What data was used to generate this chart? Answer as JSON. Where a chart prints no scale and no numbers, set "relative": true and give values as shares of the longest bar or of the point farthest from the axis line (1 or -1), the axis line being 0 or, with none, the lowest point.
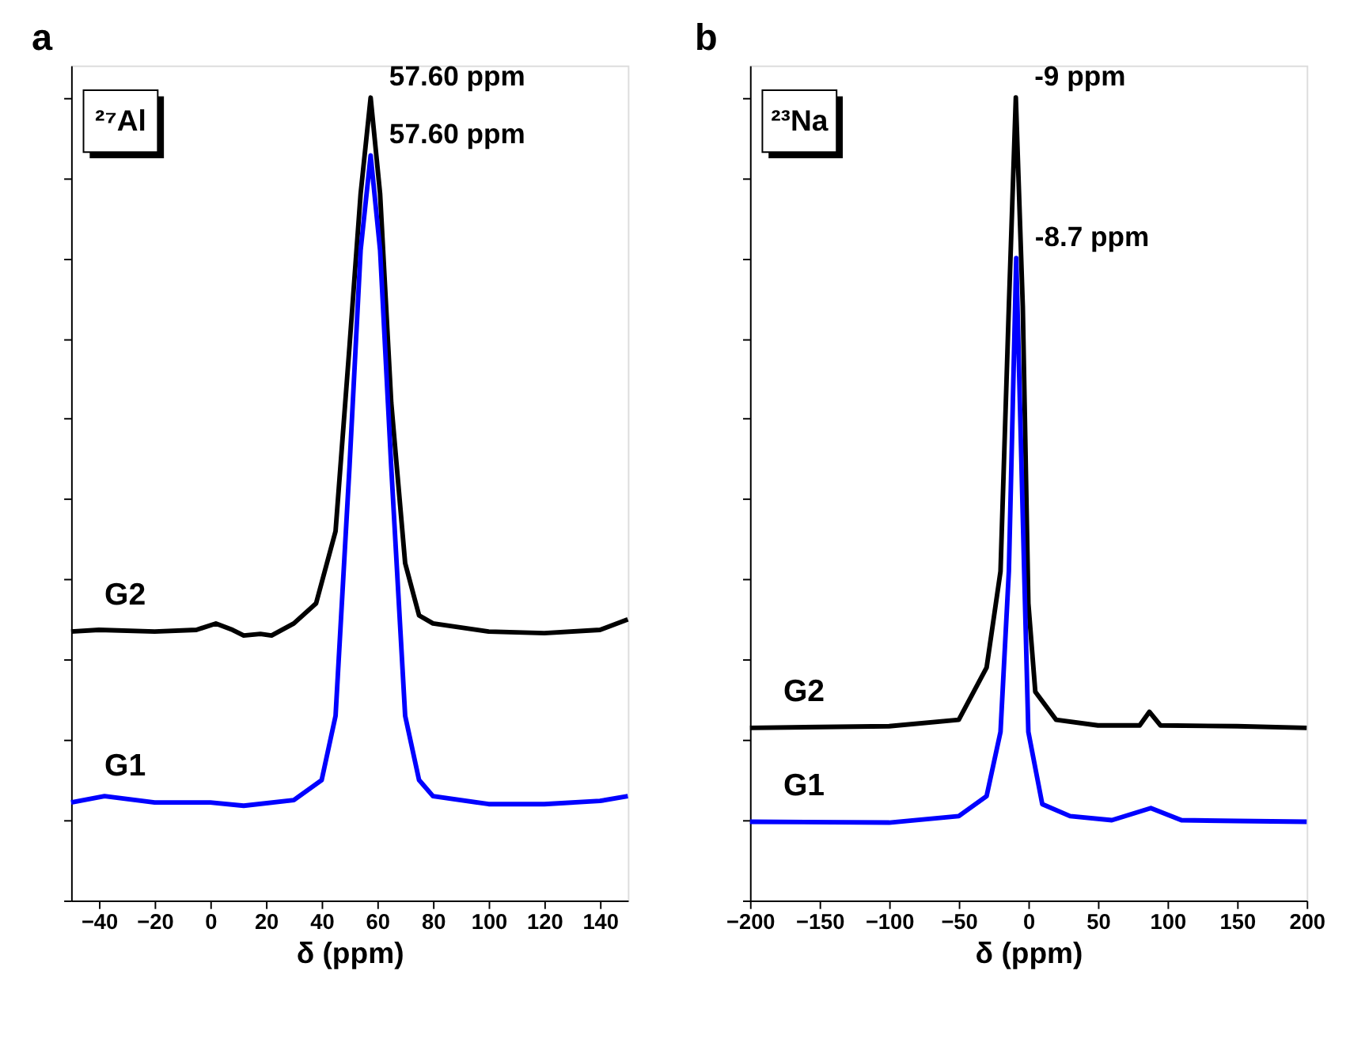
{
  "chart_data": [
    {
      "type": "line",
      "title": "a",
      "xlabel": "δ (ppm)",
      "relative": true,
      "xlim": [
        -50,
        150
      ],
      "xticks": [
        -40,
        -20,
        0,
        20,
        40,
        60,
        80,
        100,
        120,
        140
      ],
      "tick_labels": "x",
      "grid": false,
      "legend": "left",
      "line_style": "solid",
      "marker": "none",
      "annotations": [
        "²⁷Al",
        {
          "text": "57.60 ppm",
          "x": 57.6,
          "y": 1.0
        },
        {
          "text": "57.60 ppm",
          "x": 57.6,
          "y": 0.928
        }
      ],
      "series": [
        {
          "name": "G2",
          "color": "#000000",
          "x": [
            -50,
            -40,
            -20,
            -5,
            2,
            8,
            12,
            18,
            22,
            30,
            38,
            45,
            50,
            54,
            57.6,
            61,
            65,
            70,
            75,
            80,
            100,
            120,
            140,
            150
          ],
          "values": [
            0.335,
            0.337,
            0.335,
            0.337,
            0.345,
            0.337,
            0.33,
            0.332,
            0.33,
            0.345,
            0.37,
            0.46,
            0.69,
            0.88,
            1.0,
            0.88,
            0.62,
            0.42,
            0.355,
            0.345,
            0.335,
            0.333,
            0.337,
            0.35
          ]
        },
        {
          "name": "G1",
          "color": "#0000ff",
          "x": [
            -50,
            -38,
            -20,
            0,
            12,
            30,
            40,
            45,
            50,
            54,
            57.6,
            61,
            65,
            70,
            75,
            80,
            100,
            120,
            140,
            150
          ],
          "values": [
            0.122,
            0.13,
            0.122,
            0.122,
            0.118,
            0.125,
            0.15,
            0.23,
            0.54,
            0.81,
            0.928,
            0.81,
            0.54,
            0.23,
            0.15,
            0.13,
            0.12,
            0.12,
            0.124,
            0.13
          ]
        }
      ]
    },
    {
      "type": "line",
      "title": "b",
      "xlabel": "δ (ppm)",
      "relative": true,
      "xlim": [
        -200,
        200
      ],
      "xticks": [
        -200,
        -150,
        -100,
        -50,
        0,
        50,
        100,
        150,
        200
      ],
      "tick_labels": "x",
      "grid": false,
      "legend": "left",
      "line_style": "solid",
      "marker": "none",
      "annotations": [
        "²³Na",
        {
          "text": "-9 ppm",
          "x": -9,
          "y": 1.0
        },
        {
          "text": "-8.7 ppm",
          "x": -8.7,
          "y": 0.8
        }
      ],
      "series": [
        {
          "name": "G2",
          "color": "#000000",
          "x": [
            -200,
            -100,
            -50,
            -30,
            -20,
            -14,
            -9,
            -4,
            0,
            5,
            20,
            50,
            80,
            87,
            95,
            150,
            200
          ],
          "values": [
            0.215,
            0.217,
            0.225,
            0.29,
            0.41,
            0.74,
            1.0,
            0.74,
            0.37,
            0.26,
            0.225,
            0.218,
            0.218,
            0.235,
            0.218,
            0.217,
            0.215
          ]
        },
        {
          "name": "G1",
          "color": "#0000ff",
          "x": [
            -200,
            -100,
            -50,
            -30,
            -20,
            -14,
            -8.7,
            -3,
            0,
            10,
            30,
            60,
            88,
            110,
            150,
            200
          ],
          "values": [
            0.098,
            0.097,
            0.105,
            0.13,
            0.21,
            0.41,
            0.8,
            0.41,
            0.21,
            0.12,
            0.105,
            0.1,
            0.115,
            0.1,
            0.099,
            0.098
          ]
        }
      ]
    }
  ]
}
